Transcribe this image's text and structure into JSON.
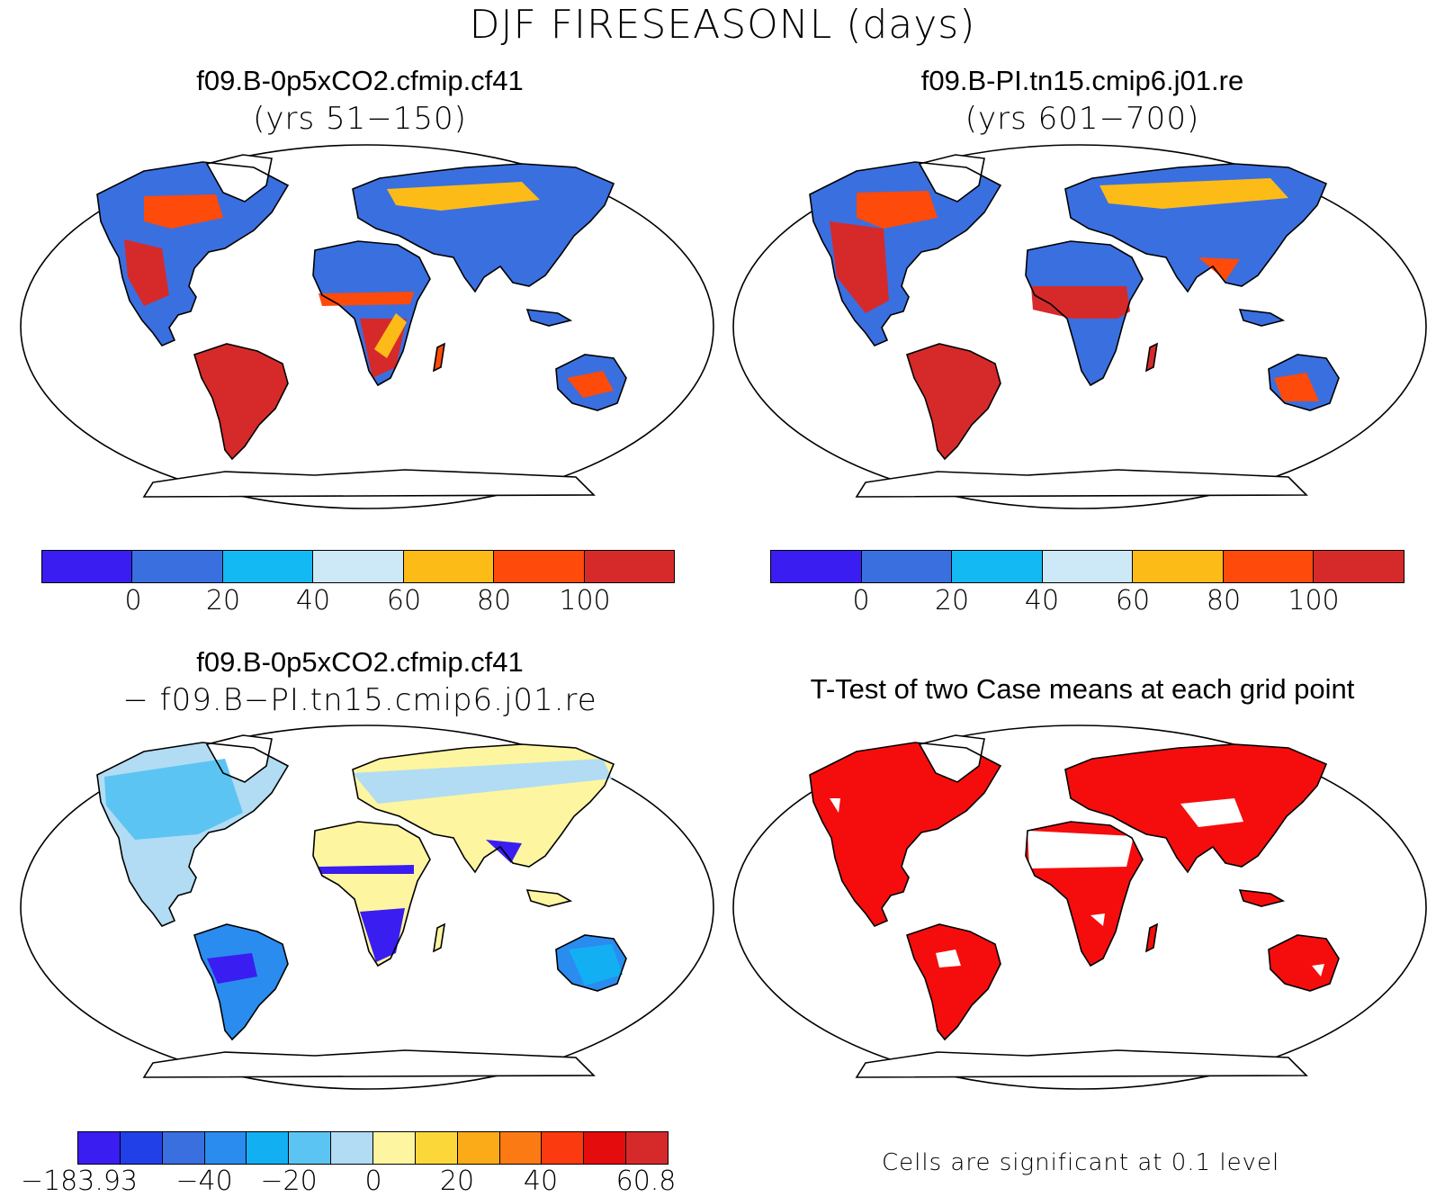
{
  "title": "DJF FIRESEASONL (days)",
  "panels": [
    {
      "title": "f09.B-0p5xCO2.cfmip.cf41",
      "subtitle": "(yrs 51−150)",
      "type": "case"
    },
    {
      "title": "f09.B-PI.tn15.cmip6.j01.re",
      "subtitle": "(yrs 601−700)",
      "type": "case"
    },
    {
      "title": "f09.B-0p5xCO2.cfmip.cf41",
      "subtitle": "− f09.B−PI.tn15.cmip6.j01.re",
      "type": "diff"
    },
    {
      "title": "T-Test of two Case means at each grid point",
      "type": "ttest"
    }
  ],
  "colorbar_case": {
    "colors": [
      "#3a1df0",
      "#3a6fe0",
      "#12b9f2",
      "#cde8f7",
      "#fdbb17",
      "#fe4a0a",
      "#d62a2a"
    ],
    "ticks": [
      "0",
      "20",
      "40",
      "60",
      "80",
      "100"
    ]
  },
  "colorbar_diff": {
    "colors": [
      "#3a1df0",
      "#2240e8",
      "#3a6fe0",
      "#2a8cee",
      "#12b0f2",
      "#5cc4f2",
      "#b1dcf3",
      "#fdf5a0",
      "#fbd73a",
      "#fbab18",
      "#fb7a14",
      "#fb3a10",
      "#e40c0c",
      "#d62a2a"
    ],
    "ticks": [
      "−183.93",
      "−40",
      "−20",
      "0",
      "20",
      "40",
      "60.8"
    ]
  },
  "significance_note": "Cells are significant at 0.1 level",
  "significance_color": "#f50d0d"
}
